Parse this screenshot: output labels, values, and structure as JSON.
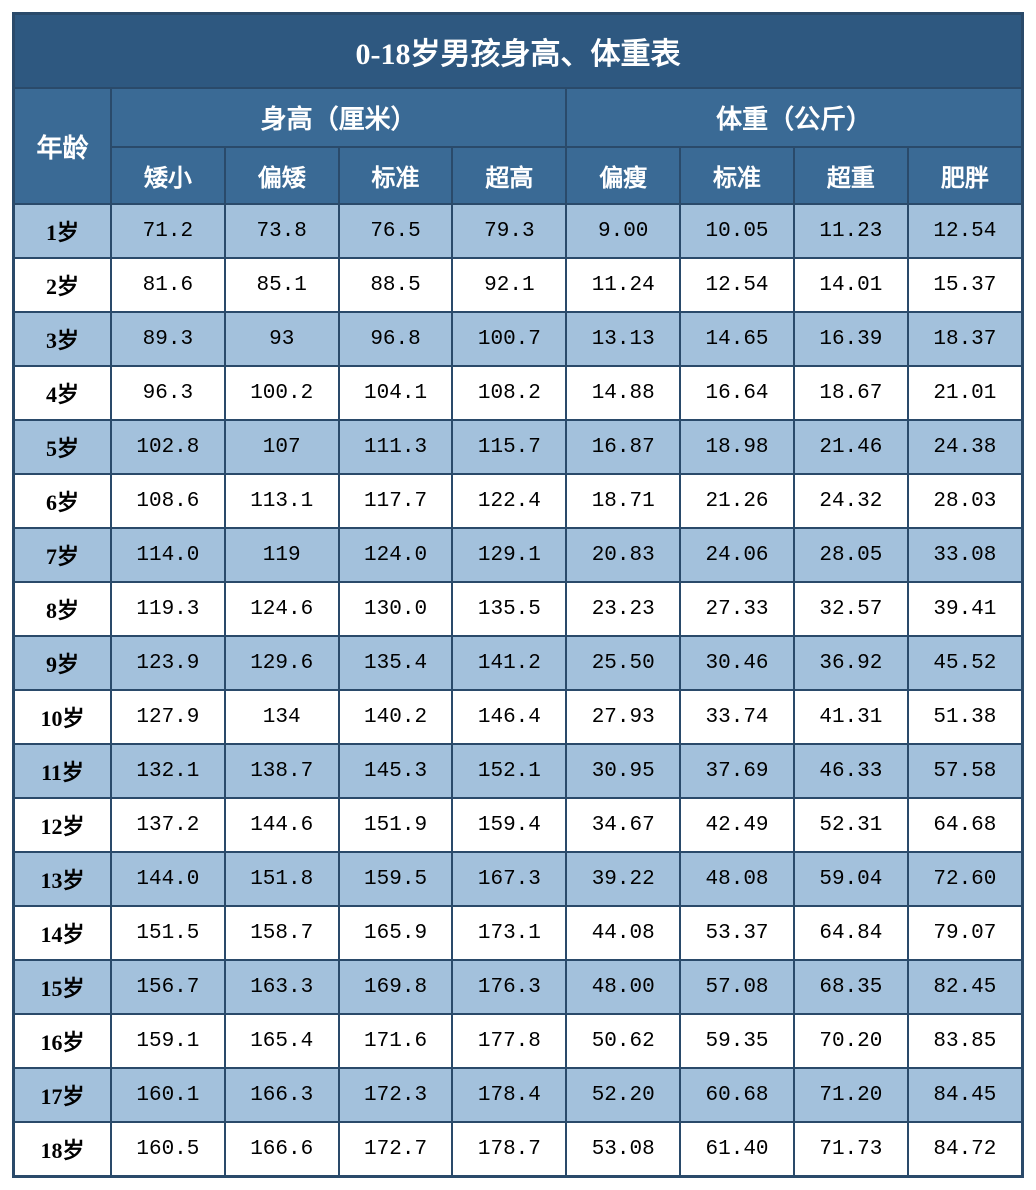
{
  "title": "0-18岁男孩身高、体重表",
  "headers": {
    "age": "年龄",
    "height_group": "身高（厘米）",
    "weight_group": "体重（公斤）",
    "height_cols": [
      "矮小",
      "偏矮",
      "标准",
      "超高"
    ],
    "weight_cols": [
      "偏瘦",
      "标准",
      "超重",
      "肥胖"
    ]
  },
  "rows": [
    {
      "age": "1岁",
      "h": [
        "71.2",
        "73.8",
        "76.5",
        "79.3"
      ],
      "w": [
        "9.00",
        "10.05",
        "11.23",
        "12.54"
      ]
    },
    {
      "age": "2岁",
      "h": [
        "81.6",
        "85.1",
        "88.5",
        "92.1"
      ],
      "w": [
        "11.24",
        "12.54",
        "14.01",
        "15.37"
      ]
    },
    {
      "age": "3岁",
      "h": [
        "89.3",
        "93",
        "96.8",
        "100.7"
      ],
      "w": [
        "13.13",
        "14.65",
        "16.39",
        "18.37"
      ]
    },
    {
      "age": "4岁",
      "h": [
        "96.3",
        "100.2",
        "104.1",
        "108.2"
      ],
      "w": [
        "14.88",
        "16.64",
        "18.67",
        "21.01"
      ]
    },
    {
      "age": "5岁",
      "h": [
        "102.8",
        "107",
        "111.3",
        "115.7"
      ],
      "w": [
        "16.87",
        "18.98",
        "21.46",
        "24.38"
      ]
    },
    {
      "age": "6岁",
      "h": [
        "108.6",
        "113.1",
        "117.7",
        "122.4"
      ],
      "w": [
        "18.71",
        "21.26",
        "24.32",
        "28.03"
      ]
    },
    {
      "age": "7岁",
      "h": [
        "114.0",
        "119",
        "124.0",
        "129.1"
      ],
      "w": [
        "20.83",
        "24.06",
        "28.05",
        "33.08"
      ]
    },
    {
      "age": "8岁",
      "h": [
        "119.3",
        "124.6",
        "130.0",
        "135.5"
      ],
      "w": [
        "23.23",
        "27.33",
        "32.57",
        "39.41"
      ]
    },
    {
      "age": "9岁",
      "h": [
        "123.9",
        "129.6",
        "135.4",
        "141.2"
      ],
      "w": [
        "25.50",
        "30.46",
        "36.92",
        "45.52"
      ]
    },
    {
      "age": "10岁",
      "h": [
        "127.9",
        "134",
        "140.2",
        "146.4"
      ],
      "w": [
        "27.93",
        "33.74",
        "41.31",
        "51.38"
      ]
    },
    {
      "age": "11岁",
      "h": [
        "132.1",
        "138.7",
        "145.3",
        "152.1"
      ],
      "w": [
        "30.95",
        "37.69",
        "46.33",
        "57.58"
      ]
    },
    {
      "age": "12岁",
      "h": [
        "137.2",
        "144.6",
        "151.9",
        "159.4"
      ],
      "w": [
        "34.67",
        "42.49",
        "52.31",
        "64.68"
      ]
    },
    {
      "age": "13岁",
      "h": [
        "144.0",
        "151.8",
        "159.5",
        "167.3"
      ],
      "w": [
        "39.22",
        "48.08",
        "59.04",
        "72.60"
      ]
    },
    {
      "age": "14岁",
      "h": [
        "151.5",
        "158.7",
        "165.9",
        "173.1"
      ],
      "w": [
        "44.08",
        "53.37",
        "64.84",
        "79.07"
      ]
    },
    {
      "age": "15岁",
      "h": [
        "156.7",
        "163.3",
        "169.8",
        "176.3"
      ],
      "w": [
        "48.00",
        "57.08",
        "68.35",
        "82.45"
      ]
    },
    {
      "age": "16岁",
      "h": [
        "159.1",
        "165.4",
        "171.6",
        "177.8"
      ],
      "w": [
        "50.62",
        "59.35",
        "70.20",
        "83.85"
      ]
    },
    {
      "age": "17岁",
      "h": [
        "160.1",
        "166.3",
        "172.3",
        "178.4"
      ],
      "w": [
        "52.20",
        "60.68",
        "71.20",
        "84.45"
      ]
    },
    {
      "age": "18岁",
      "h": [
        "160.5",
        "166.6",
        "172.7",
        "178.7"
      ],
      "w": [
        "53.08",
        "61.40",
        "71.73",
        "84.72"
      ]
    }
  ],
  "style": {
    "title_bg": "#2e5880",
    "header_bg": "#3a6a95",
    "odd_row_bg": "#a3c1dc",
    "even_row_bg": "#ffffff",
    "border_color": "#2a4a6a",
    "title_fontsize": 30,
    "header_fontsize": 26,
    "subheader_fontsize": 24,
    "cell_fontsize": 21,
    "text_color_header": "#ffffff",
    "text_color_body": "#000000"
  }
}
